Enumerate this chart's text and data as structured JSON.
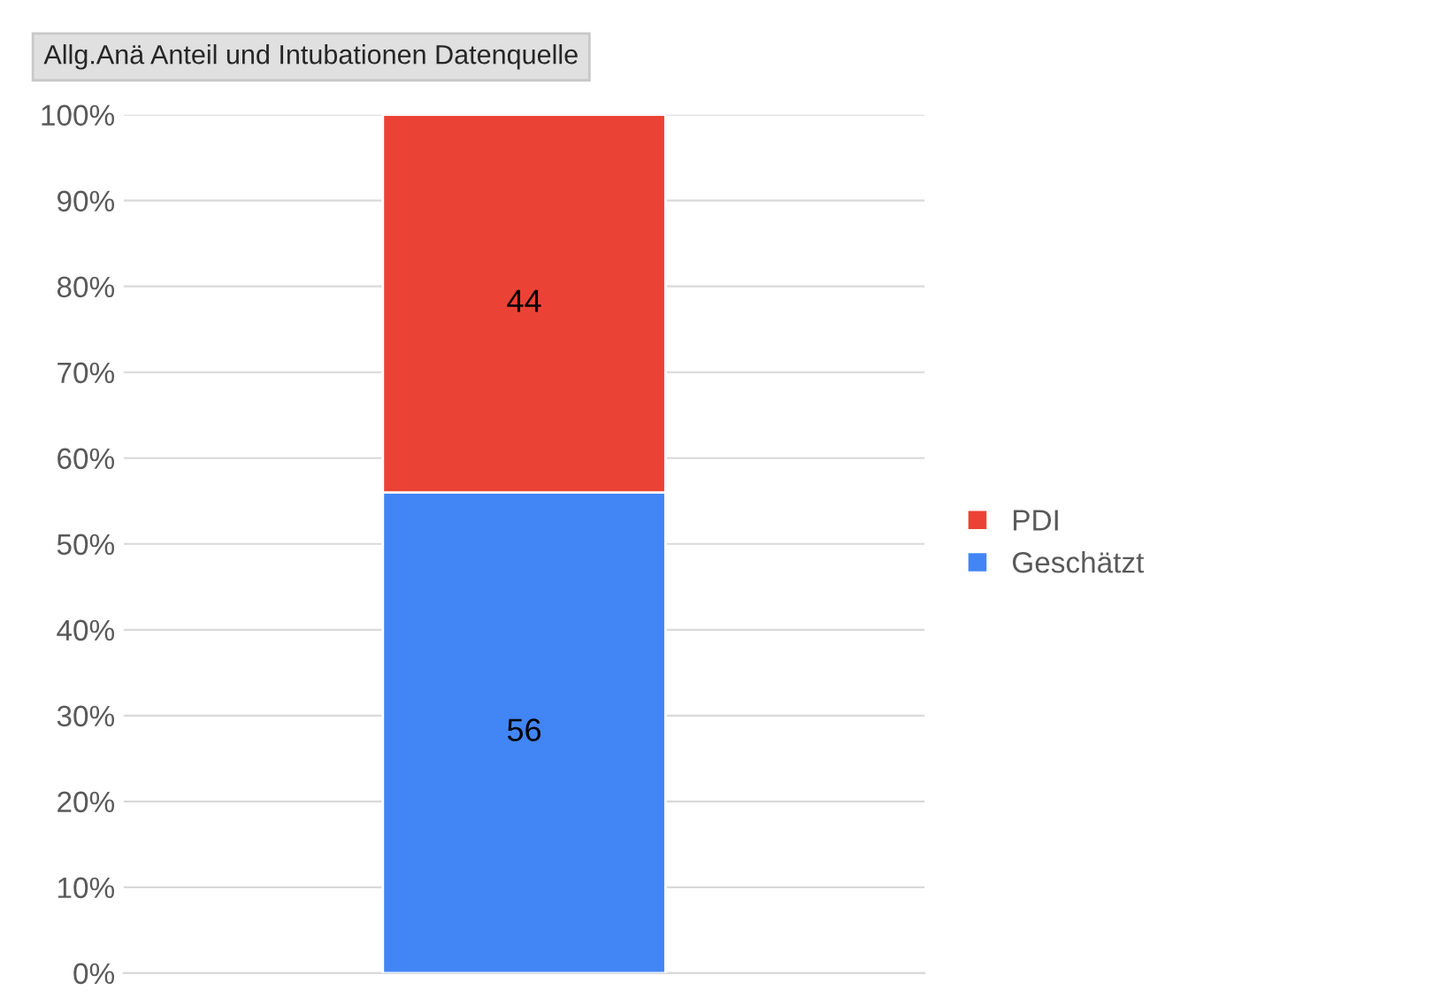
{
  "chart_data": {
    "type": "bar",
    "title": "Allg.Anä Anteil und Intubationen Datenquelle",
    "categories": [
      null
    ],
    "stacked": true,
    "series": [
      {
        "name": "Geschätzt",
        "color": "#4285f4",
        "values": [
          56
        ]
      },
      {
        "name": "PDI",
        "color": "#ea4335",
        "values": [
          44
        ]
      }
    ],
    "ylim": [
      0,
      100
    ],
    "yticks": [
      {
        "value": 0,
        "label": "0%"
      },
      {
        "value": 10,
        "label": "10%"
      },
      {
        "value": 20,
        "label": "20%"
      },
      {
        "value": 30,
        "label": "30%"
      },
      {
        "value": 40,
        "label": "40%"
      },
      {
        "value": 50,
        "label": "50%"
      },
      {
        "value": 60,
        "label": "60%"
      },
      {
        "value": 70,
        "label": "70%"
      },
      {
        "value": 80,
        "label": "80%"
      },
      {
        "value": 90,
        "label": "90%"
      },
      {
        "value": 100,
        "label": "100%"
      }
    ],
    "grid": "y",
    "legend": "right",
    "data_labels": true
  }
}
